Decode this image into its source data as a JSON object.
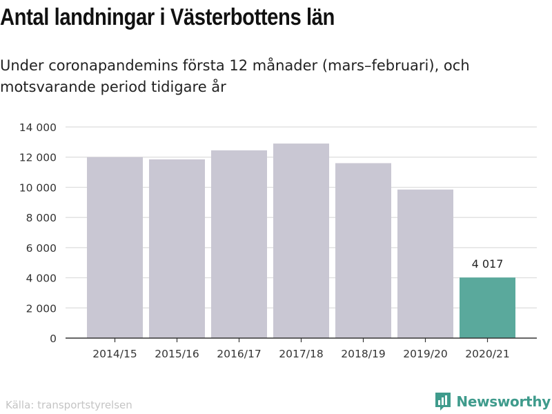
{
  "chart_data": {
    "type": "bar",
    "title": "Antal landningar i Västerbottens län",
    "subtitle": "Under coronapandemins första 12 månader (mars–februari), och motsvarande period tidigare år",
    "categories": [
      "2014/15",
      "2015/16",
      "2016/17",
      "2017/18",
      "2018/19",
      "2019/20",
      "2020/21"
    ],
    "values": [
      12000,
      11850,
      12450,
      12900,
      11600,
      9850,
      4017
    ],
    "ylim": [
      0,
      14000
    ],
    "yticks": [
      0,
      2000,
      4000,
      6000,
      8000,
      10000,
      12000,
      14000
    ],
    "ytick_labels": [
      "0",
      "2 000",
      "4 000",
      "6 000",
      "8 000",
      "10 000",
      "12 000",
      "14 000"
    ],
    "grid": true,
    "data_labels": [
      {
        "index": 6,
        "text": "4 017"
      }
    ],
    "colors": {
      "default": "#c9c7d3",
      "highlight": "#5aa99c"
    },
    "highlight_index": 6
  },
  "footer": {
    "source": "Källa: transportstyrelsen",
    "brand": "Newsworthy",
    "brand_icon": "bar-chart-badge-icon",
    "brand_color": "#3f9b8c"
  }
}
